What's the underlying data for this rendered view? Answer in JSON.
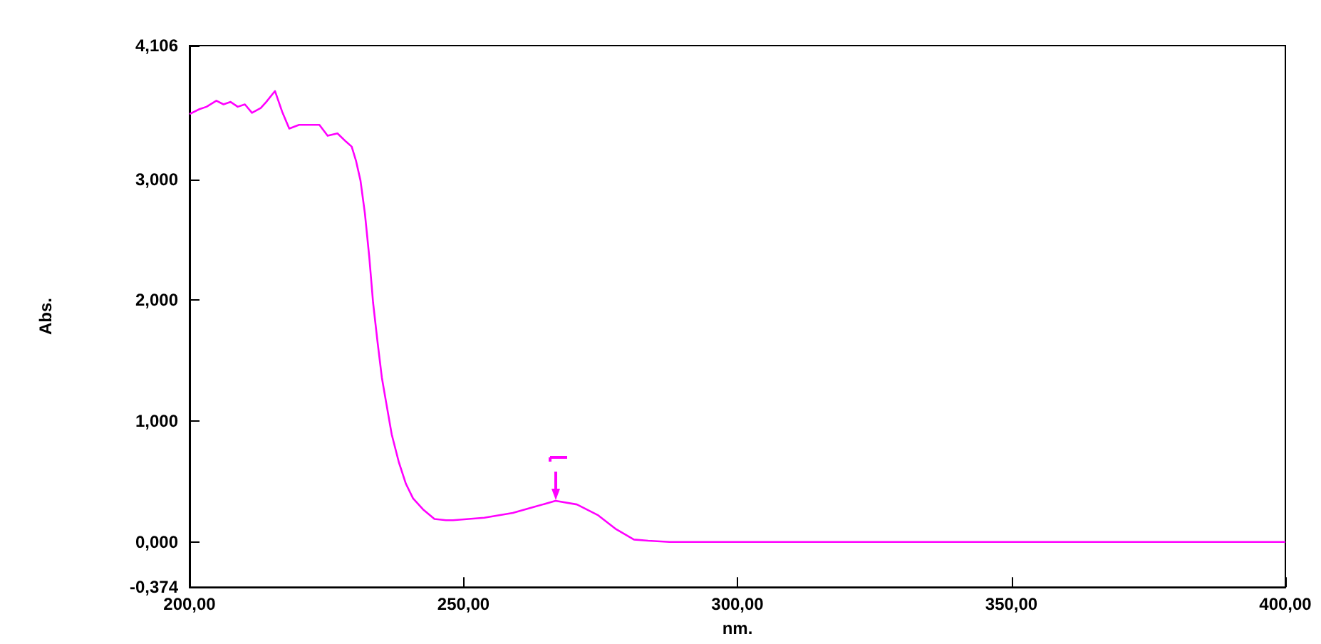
{
  "chart_data": {
    "type": "line",
    "xlabel": "nm.",
    "ylabel": "Abs.",
    "x": [
      200,
      201.8,
      203.1,
      204.9,
      206.2,
      207.5,
      208.8,
      210.1,
      211.4,
      213.0,
      214.0,
      215.6,
      216.9,
      218.2,
      220.0,
      222.1,
      223.7,
      225.2,
      227.0,
      228.6,
      229.6,
      230.4,
      231.2,
      232.0,
      232.8,
      233.5,
      234.3,
      235.1,
      235.9,
      236.9,
      238.2,
      239.5,
      240.8,
      242.6,
      244.7,
      246.8,
      248.1,
      253.8,
      259.0,
      262.9,
      266.8,
      270.7,
      274.6,
      277.7,
      281.1,
      283.7,
      287.6,
      300,
      350,
      400
    ],
    "series": [
      {
        "color": "#ff00ff",
        "values": [
          3.54,
          3.58,
          3.6,
          3.65,
          3.62,
          3.64,
          3.6,
          3.62,
          3.55,
          3.59,
          3.64,
          3.73,
          3.56,
          3.42,
          3.45,
          3.45,
          3.45,
          3.36,
          3.38,
          3.31,
          3.27,
          3.15,
          2.99,
          2.72,
          2.36,
          1.98,
          1.66,
          1.36,
          1.15,
          0.89,
          0.66,
          0.48,
          0.36,
          0.27,
          0.19,
          0.18,
          0.18,
          0.2,
          0.24,
          0.29,
          0.34,
          0.31,
          0.22,
          0.11,
          0.02,
          0.01,
          0,
          0,
          0,
          0
        ]
      }
    ],
    "xlim": [
      200,
      400
    ],
    "xticks": [
      {
        "value": 200,
        "label": "200,00"
      },
      {
        "value": 250,
        "label": "250,00"
      },
      {
        "value": 300,
        "label": "300,00"
      },
      {
        "value": 350,
        "label": "350,00"
      },
      {
        "value": 400,
        "label": "400,00"
      }
    ],
    "ylim": [
      -0.374,
      4.106
    ],
    "yticks": [
      {
        "value": -0.374,
        "label": "-0,374"
      },
      {
        "value": 0,
        "label": "0,000"
      },
      {
        "value": 1,
        "label": "1,000"
      },
      {
        "value": 2,
        "label": "2,000"
      },
      {
        "value": 3,
        "label": "3,000"
      },
      {
        "value": 4.106,
        "label": "4,106"
      }
    ],
    "grid": false,
    "marker": "none",
    "line_style": "solid"
  }
}
